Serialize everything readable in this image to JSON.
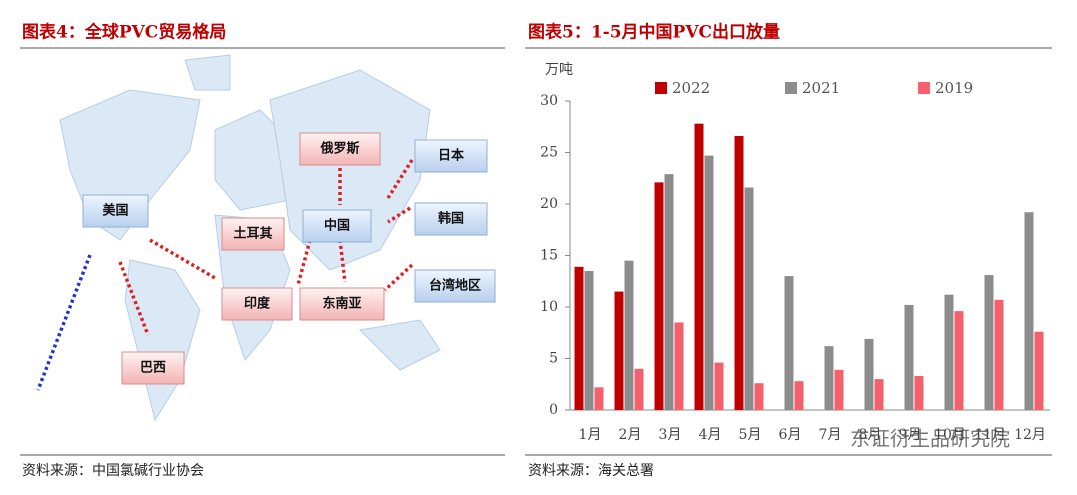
{
  "left": {
    "title": "图表4：全球PVC贸易格局",
    "source": "资料来源：中国氯碱行业协会",
    "nodes": [
      {
        "label": "美国"
      },
      {
        "label": "巴西"
      },
      {
        "label": "土耳其"
      },
      {
        "label": "印度"
      },
      {
        "label": "中国"
      },
      {
        "label": "东南亚"
      },
      {
        "label": "俄罗斯"
      },
      {
        "label": "日本"
      },
      {
        "label": "韩国"
      },
      {
        "label": "台湾地区"
      }
    ]
  },
  "chart_data": {
    "type": "bar",
    "title": "图表5：1-5月中国PVC出口放量",
    "y_label": "万吨",
    "source": "资料来源：海关总署",
    "categories": [
      "1月",
      "2月",
      "3月",
      "4月",
      "5月",
      "6月",
      "7月",
      "8月",
      "9月",
      "10月",
      "11月",
      "12月"
    ],
    "series": [
      {
        "name": "2022",
        "color": "#c00000",
        "values": [
          13.9,
          11.5,
          22.1,
          27.8,
          26.6,
          null,
          null,
          null,
          null,
          null,
          null,
          null
        ]
      },
      {
        "name": "2021",
        "color": "#8c8c8c",
        "values": [
          13.5,
          14.5,
          22.9,
          24.7,
          21.6,
          13.0,
          6.2,
          6.9,
          10.2,
          11.2,
          13.1,
          19.2
        ]
      },
      {
        "name": "2019",
        "color": "#f4606c",
        "values": [
          2.2,
          4.0,
          8.5,
          4.6,
          2.6,
          2.8,
          3.9,
          3.0,
          3.3,
          9.6,
          10.7,
          7.6
        ]
      }
    ],
    "ylim": [
      0,
      30
    ],
    "yticks": [
      0,
      5,
      10,
      15,
      20,
      25,
      30
    ],
    "grid": false
  },
  "watermark": "东证衍生品研究院"
}
